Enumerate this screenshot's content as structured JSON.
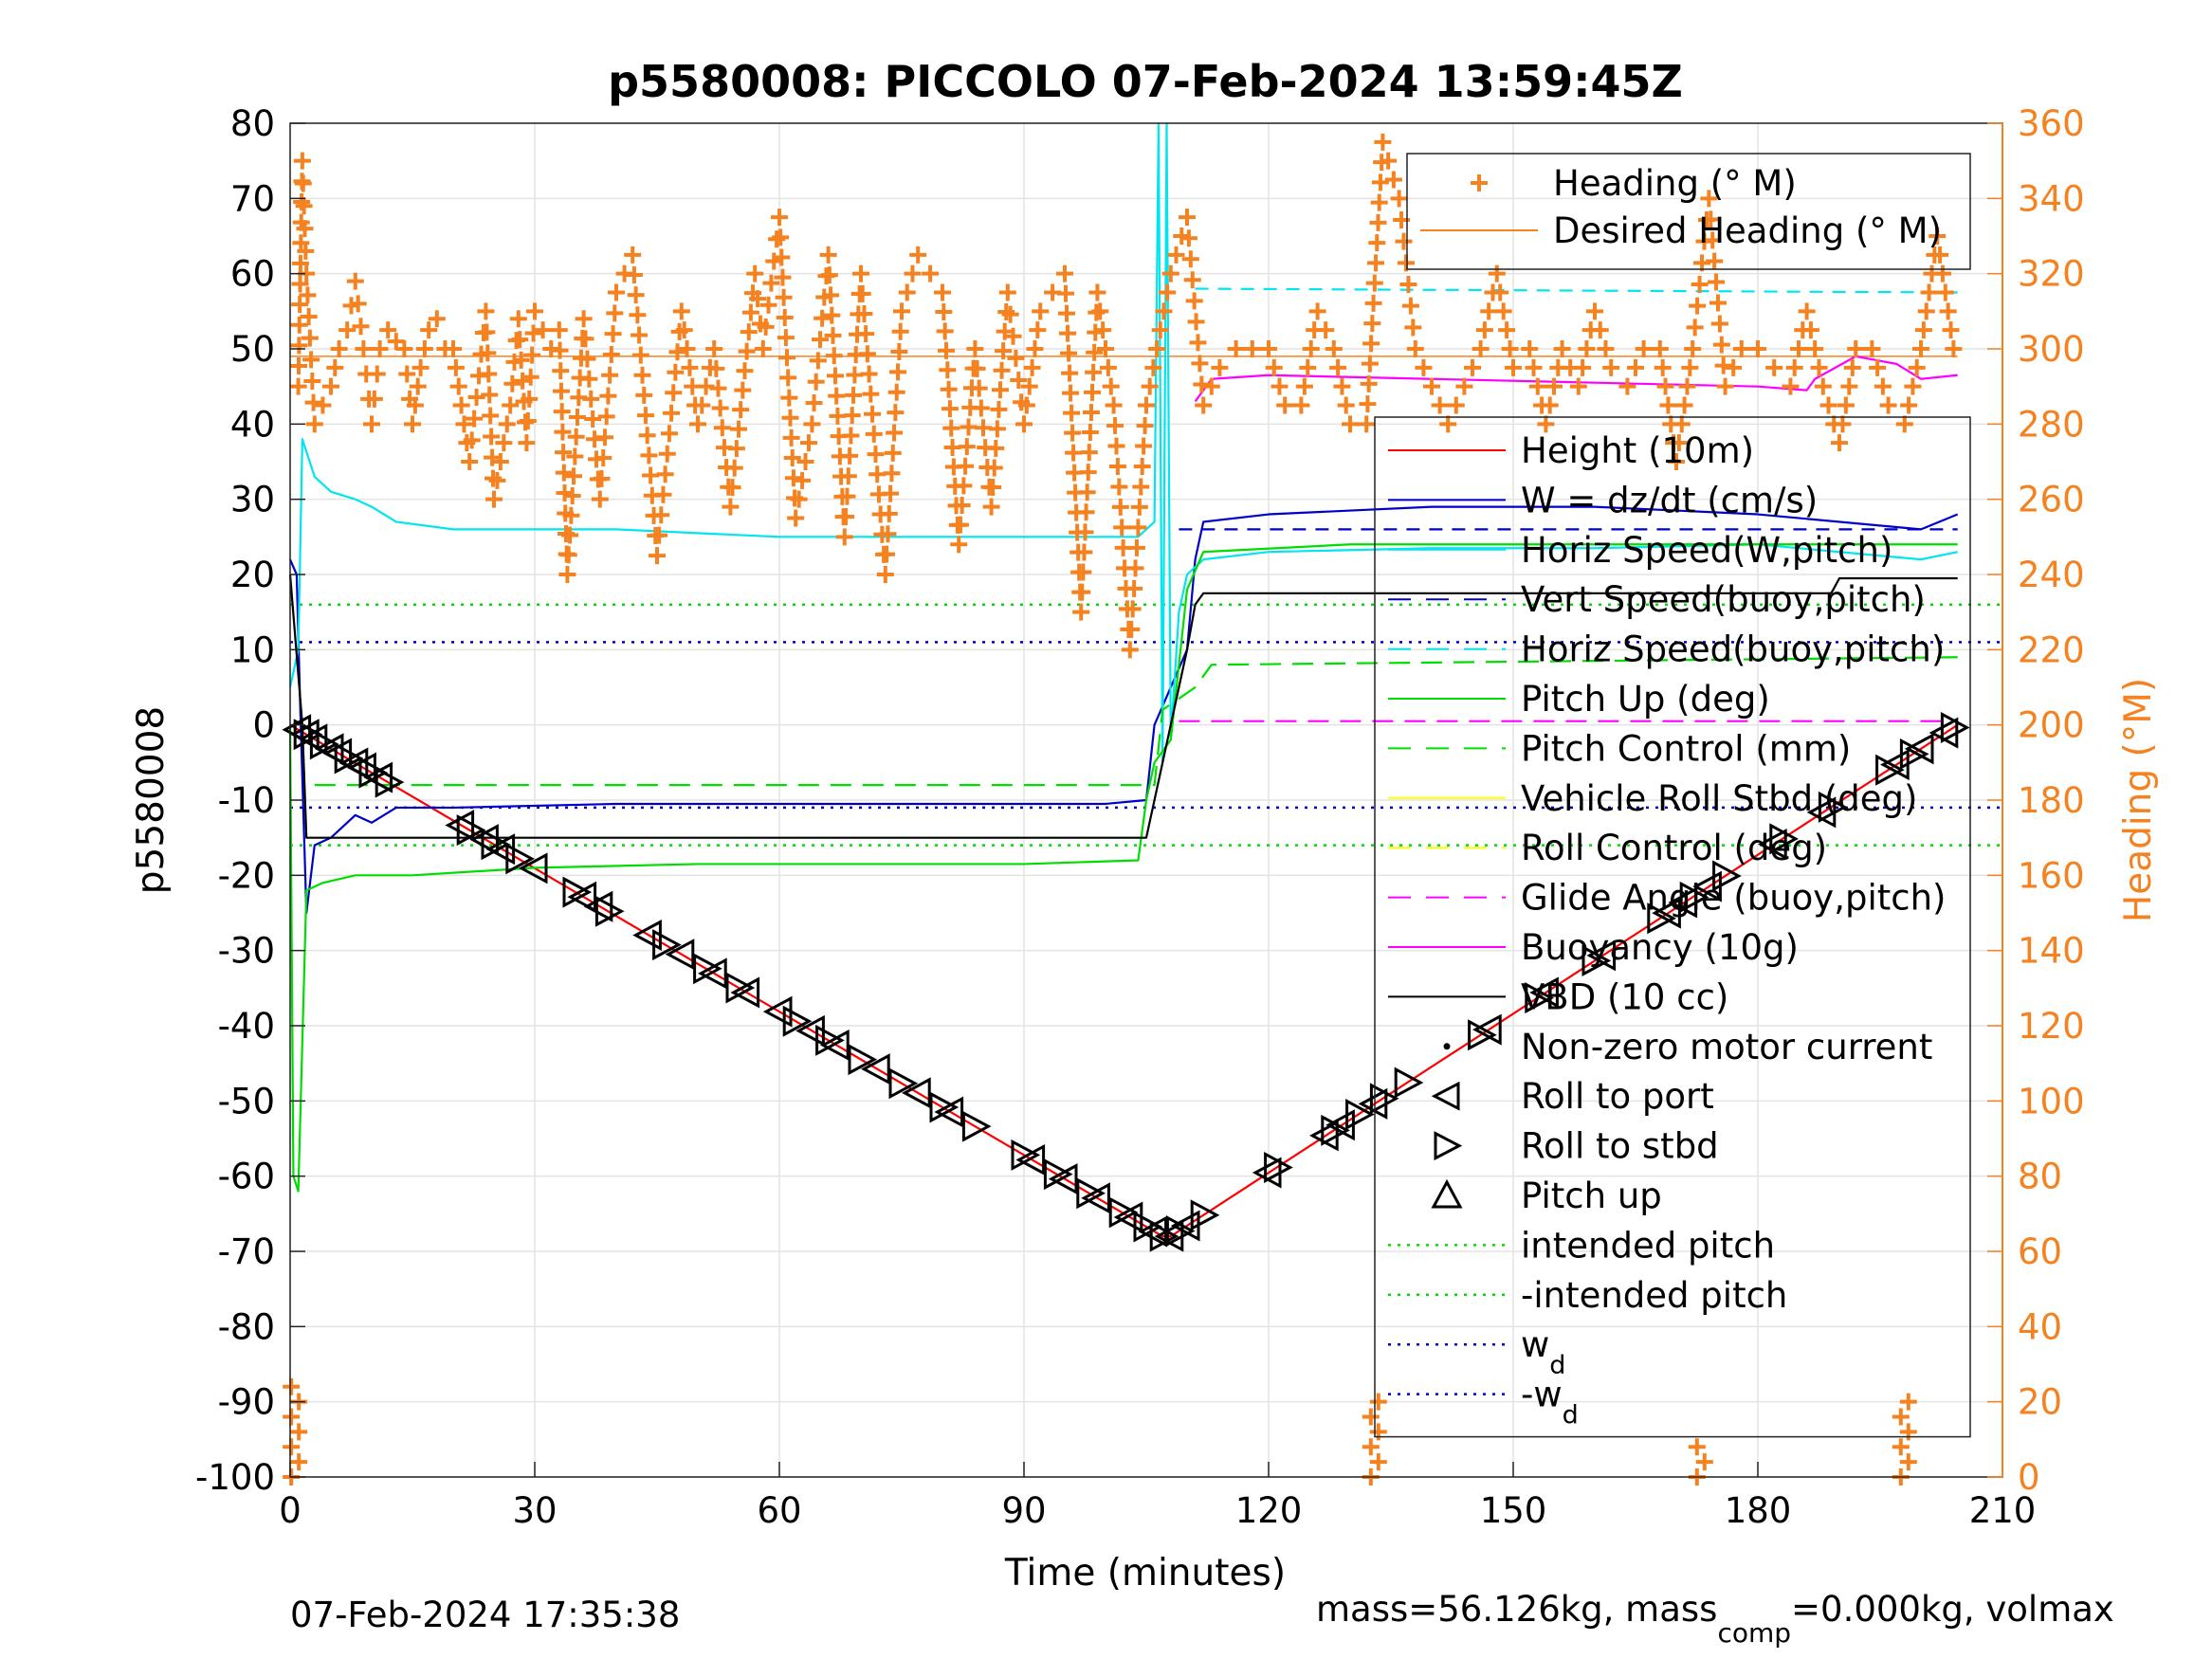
{
  "chart_data": {
    "type": "line",
    "title": "p5580008: PICCOLO 07-Feb-2024 13:59:45Z",
    "xlabel": "Time (minutes)",
    "ylabel_left": "p5580008",
    "ylabel_right": "Heading (°M)",
    "xlim": [
      0,
      210
    ],
    "ylim_left": [
      -100,
      80
    ],
    "ylim_right": [
      0,
      360
    ],
    "xticks": [
      "0",
      "30",
      "60",
      "90",
      "120",
      "150",
      "180",
      "210"
    ],
    "yticks_left": [
      "80",
      "70",
      "60",
      "50",
      "40",
      "30",
      "20",
      "10",
      "0",
      "-10",
      "-20",
      "-30",
      "-40",
      "-50",
      "-60",
      "-70",
      "-80",
      "-90",
      "-100"
    ],
    "yticks_right": [
      "360",
      "340",
      "320",
      "300",
      "280",
      "260",
      "240",
      "220",
      "200",
      "180",
      "160",
      "140",
      "120",
      "100",
      "80",
      "60",
      "40",
      "20",
      "0"
    ],
    "grid": true,
    "footer_left": "07-Feb-2024 17:35:38",
    "footer_right": {
      "prefix": "mass=56.126kg, mass",
      "sub": "comp",
      "suffix": "=0.000kg, volmax"
    },
    "legend_heading": [
      {
        "label": "Heading (° M)",
        "color": "#f58220",
        "style": "plus"
      },
      {
        "label": "Desired Heading (° M)",
        "color": "#f58220",
        "style": "line"
      }
    ],
    "legend_main": [
      {
        "label": "Height (10m)",
        "color": "#ff0000",
        "style": "solid"
      },
      {
        "label": "W = dz/dt (cm/s)",
        "color": "#0000cc",
        "style": "solid"
      },
      {
        "label": "Horiz Speed(W,pitch)",
        "color": "#00e5ee",
        "style": "solid"
      },
      {
        "label": "Vert Speed(buoy,pitch)",
        "color": "#0000cc",
        "style": "dash"
      },
      {
        "label": "Horiz Speed(buoy,pitch)",
        "color": "#00e5ee",
        "style": "dash"
      },
      {
        "label": "Pitch Up (deg)",
        "color": "#00dd00",
        "style": "solid"
      },
      {
        "label": "Pitch Control (mm)",
        "color": "#00dd00",
        "style": "dash"
      },
      {
        "label": "Vehicle Roll Stbd (deg)",
        "color": "#ffff00",
        "style": "solid"
      },
      {
        "label": "Roll Control (deg)",
        "color": "#ffff00",
        "style": "dash"
      },
      {
        "label": "Glide Angle (buoy,pitch)",
        "color": "#ff00ff",
        "style": "dash"
      },
      {
        "label": "Buoyancy (10g)",
        "color": "#ff00ff",
        "style": "solid"
      },
      {
        "label": "VBD (10 cc)",
        "color": "#000000",
        "style": "solid"
      },
      {
        "label": "Non-zero motor current",
        "color": "#000000",
        "style": "dot-marker"
      },
      {
        "label": "Roll to port",
        "color": "#000000",
        "style": "tri-left"
      },
      {
        "label": "Roll to stbd",
        "color": "#000000",
        "style": "tri-right"
      },
      {
        "label": "Pitch up",
        "color": "#000000",
        "style": "tri-up"
      },
      {
        "label": "intended pitch",
        "color": "#00dd00",
        "style": "dotted"
      },
      {
        "label": "-intended pitch",
        "color": "#00dd00",
        "style": "dotted"
      },
      {
        "label": "w",
        "sub": "d",
        "color": "#0000cc",
        "style": "dotted"
      },
      {
        "label": "-w",
        "sub": "d",
        "color": "#0000cc",
        "style": "dotted"
      }
    ],
    "series": [
      {
        "name": "Height (10m)",
        "color": "#ff0000",
        "x": [
          0,
          107,
          108,
          204.5
        ],
        "y": [
          0,
          -68,
          -68,
          0
        ]
      },
      {
        "name": "W = dz/dt (cm/s)",
        "color": "#0000cc",
        "x": [
          0,
          0.8,
          1.3,
          2,
          3,
          5,
          8,
          10,
          13,
          20,
          40,
          60,
          80,
          100,
          105,
          106,
          110,
          111,
          112,
          120,
          140,
          160,
          180,
          200,
          204.5
        ],
        "y": [
          22,
          20,
          0,
          -25,
          -16,
          -15,
          -12,
          -13,
          -11,
          -11,
          -10.5,
          -10.5,
          -10.5,
          -10.5,
          -10,
          0,
          10,
          22,
          27,
          28,
          29,
          29,
          28,
          26,
          28
        ]
      },
      {
        "name": "Horiz Speed(W,pitch)",
        "color": "#00e5ee",
        "x": [
          0,
          1,
          1.5,
          3,
          5,
          8,
          10,
          13,
          20,
          40,
          60,
          80,
          100,
          104,
          106,
          106.5,
          107,
          107.5,
          108,
          109,
          110,
          112,
          120,
          140,
          160,
          180,
          200,
          204.5
        ],
        "y": [
          5,
          10,
          38,
          33,
          31,
          30,
          29,
          27,
          26,
          26,
          25,
          25,
          25,
          25,
          27,
          80,
          -5,
          80,
          -2,
          15,
          20,
          22,
          23,
          23.5,
          23.5,
          24,
          22,
          23
        ]
      },
      {
        "name": "Vert Speed(buoy,pitch)",
        "color": "#0000cc",
        "dash": "14,10",
        "x": [
          109,
          112,
          204.5
        ],
        "y": [
          26,
          26,
          26
        ]
      },
      {
        "name": "Horiz Speed(buoy,pitch)",
        "color": "#00e5ee",
        "dash": "14,10",
        "x": [
          111,
          204.5
        ],
        "y": [
          58,
          57.5
        ]
      },
      {
        "name": "Pitch Up (deg)",
        "color": "#00dd00",
        "x": [
          0,
          0.4,
          1,
          2,
          4,
          8,
          15,
          30,
          50,
          70,
          90,
          104,
          105,
          106,
          108,
          110,
          112,
          130,
          150,
          170,
          190,
          204.5
        ],
        "y": [
          0,
          -60,
          -62,
          -22,
          -21,
          -20,
          -20,
          -19,
          -18.5,
          -18.5,
          -18.5,
          -18,
          -10,
          -5,
          -2,
          18,
          23,
          24,
          24,
          24,
          24,
          24
        ]
      },
      {
        "name": "Pitch Control (mm)",
        "color": "#00dd00",
        "dash": "22,12",
        "x": [
          3,
          106,
          107,
          111,
          113,
          204.5
        ],
        "y": [
          -8,
          -8,
          2,
          5,
          8,
          9
        ]
      },
      {
        "name": "Buoyancy (10g)",
        "color": "#ff00ff",
        "x": [
          111,
          113,
          120,
          140,
          160,
          180,
          186,
          187,
          192,
          197,
          200,
          204.5
        ],
        "y": [
          43,
          46,
          46.5,
          46,
          45.5,
          45,
          44.5,
          46,
          49,
          48,
          46,
          46.5
        ]
      },
      {
        "name": "Glide Angle (buoy,pitch)",
        "color": "#ff00ff",
        "dash": "22,12",
        "x": [
          109,
          204.5
        ],
        "y": [
          0.5,
          0.5
        ]
      },
      {
        "name": "VBD (10 cc)",
        "color": "#000000",
        "x": [
          0,
          1.5,
          2,
          105,
          106,
          110,
          111,
          112,
          189,
          190,
          204.5
        ],
        "y": [
          20,
          0,
          -15,
          -15,
          -10,
          10,
          16,
          17.5,
          17.5,
          19.5,
          19.5
        ]
      }
    ],
    "reference_lines": [
      {
        "name": "intended pitch",
        "y": 16,
        "color": "#00dd00",
        "dash": "3,7"
      },
      {
        "name": "-intended pitch",
        "y": -16,
        "color": "#00dd00",
        "dash": "3,7"
      },
      {
        "name": "w_d",
        "y": 11,
        "color": "#0000cc",
        "dash": "3,7"
      },
      {
        "name": "-w_d",
        "y": -11,
        "color": "#0000cc",
        "dash": "3,7"
      }
    ],
    "desired_heading": {
      "name": "Desired Heading (° M)",
      "color": "#f58220",
      "x": [
        0,
        204.5
      ],
      "y": [
        298,
        298
      ]
    },
    "heading_points": {
      "name": "Heading (° M)",
      "color": "#f58220",
      "x": [
        1,
        1.5,
        2,
        3,
        5,
        6,
        7,
        8,
        9,
        10,
        11,
        12,
        13,
        14,
        15,
        16,
        17,
        18,
        19,
        20,
        22,
        24,
        25,
        27,
        28,
        29,
        30,
        32,
        33,
        34,
        36,
        38,
        40,
        42,
        45,
        48,
        50,
        52,
        54,
        57,
        58,
        60,
        62,
        64,
        66,
        68,
        70,
        73,
        75,
        77,
        80,
        82,
        84,
        86,
        88,
        90,
        92,
        95,
        97,
        99,
        101,
        103,
        105,
        108,
        110,
        112,
        114,
        116,
        118,
        120,
        122,
        124,
        126,
        128,
        130,
        132,
        134,
        136,
        138,
        140,
        142,
        144,
        146,
        148,
        150,
        152,
        154,
        156,
        158,
        160,
        162,
        164,
        166,
        168,
        170,
        172,
        174,
        176,
        178,
        180,
        182,
        184,
        186,
        188,
        190,
        192,
        194,
        196,
        198,
        200,
        202,
        204
      ],
      "y": [
        290,
        350,
        320,
        280,
        290,
        300,
        305,
        318,
        300,
        280,
        300,
        305,
        302,
        300,
        280,
        295,
        305,
        308,
        300,
        300,
        270,
        310,
        260,
        285,
        308,
        275,
        310,
        300,
        305,
        240,
        308,
        260,
        315,
        325,
        245,
        310,
        280,
        300,
        258,
        320,
        300,
        335,
        255,
        280,
        325,
        250,
        320,
        240,
        310,
        325,
        315,
        248,
        300,
        258,
        315,
        280,
        310,
        320,
        230,
        315,
        285,
        220,
        285,
        320,
        335,
        285,
        295,
        300,
        300,
        300,
        285,
        285,
        310,
        300,
        280,
        280,
        355,
        340,
        300,
        290,
        280,
        290,
        300,
        320,
        295,
        300,
        280,
        300,
        290,
        310,
        295,
        290,
        300,
        300,
        270,
        300,
        340,
        290,
        300,
        300,
        295,
        290,
        310,
        290,
        275,
        300,
        300,
        285,
        280,
        300,
        330,
        300
      ]
    },
    "heading_low_clusters": [
      {
        "x": 0.6,
        "y_min": 0,
        "y_max": 25
      },
      {
        "x": 133,
        "y_min": 0,
        "y_max": 20
      },
      {
        "x": 173,
        "y_min": 0,
        "y_max": 8
      },
      {
        "x": 198,
        "y_min": 0,
        "y_max": 22
      }
    ],
    "motor_events": {
      "roll_to_port_x": [
        1,
        2,
        3,
        5,
        6,
        8,
        9,
        11,
        21,
        24,
        26,
        30,
        36,
        38,
        44,
        48,
        52,
        56,
        60,
        64,
        67,
        72,
        77,
        81,
        91,
        95,
        99,
        103,
        106,
        108,
        110,
        120,
        127,
        129,
        133,
        147,
        154,
        161,
        169,
        171,
        174,
        182,
        188,
        197,
        200,
        203
      ],
      "roll_to_stbd_x": [
        2,
        4,
        7,
        10,
        12,
        22,
        25,
        28,
        35,
        39,
        46,
        51,
        55,
        62,
        66,
        70,
        75,
        80,
        84,
        90,
        94,
        98,
        102,
        105,
        107,
        109,
        112,
        121,
        128,
        131,
        134,
        137,
        146,
        153,
        160,
        168,
        172,
        176,
        183,
        189,
        196,
        199,
        204
      ]
    }
  }
}
